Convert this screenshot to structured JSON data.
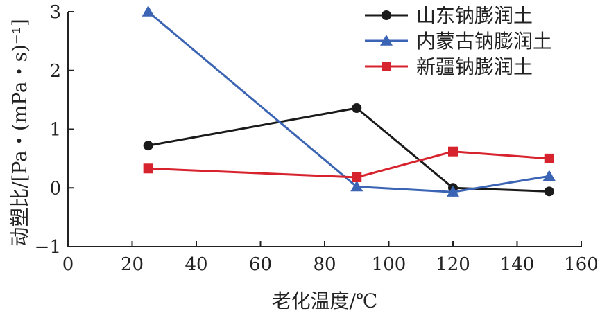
{
  "chart_data": {
    "type": "line",
    "xlabel": "老化温度/℃",
    "ylabel": "动塑比/[Pa・(mPa・s)⁻¹]",
    "xlim": [
      0,
      160
    ],
    "ylim": [
      -1,
      3
    ],
    "xticks": [
      0,
      20,
      40,
      60,
      80,
      100,
      120,
      140,
      160
    ],
    "yticks": [
      -1,
      0,
      1,
      2,
      3
    ],
    "grid": false,
    "legend_position": "top-right",
    "series": [
      {
        "name": "山东钠膨润土",
        "marker": "circle",
        "color": "#1a1a1a",
        "x": [
          25,
          90,
          120,
          150
        ],
        "y": [
          0.72,
          1.36,
          0.0,
          -0.06
        ]
      },
      {
        "name": "内蒙古钠膨润土",
        "marker": "triangle",
        "color": "#3b64b4",
        "x": [
          25,
          90,
          120,
          150
        ],
        "y": [
          3.0,
          0.02,
          -0.07,
          0.2
        ]
      },
      {
        "name": "新疆钠膨润土",
        "marker": "square",
        "color": "#d7232d",
        "x": [
          25,
          90,
          120,
          150
        ],
        "y": [
          0.33,
          0.18,
          0.62,
          0.5
        ]
      }
    ]
  }
}
